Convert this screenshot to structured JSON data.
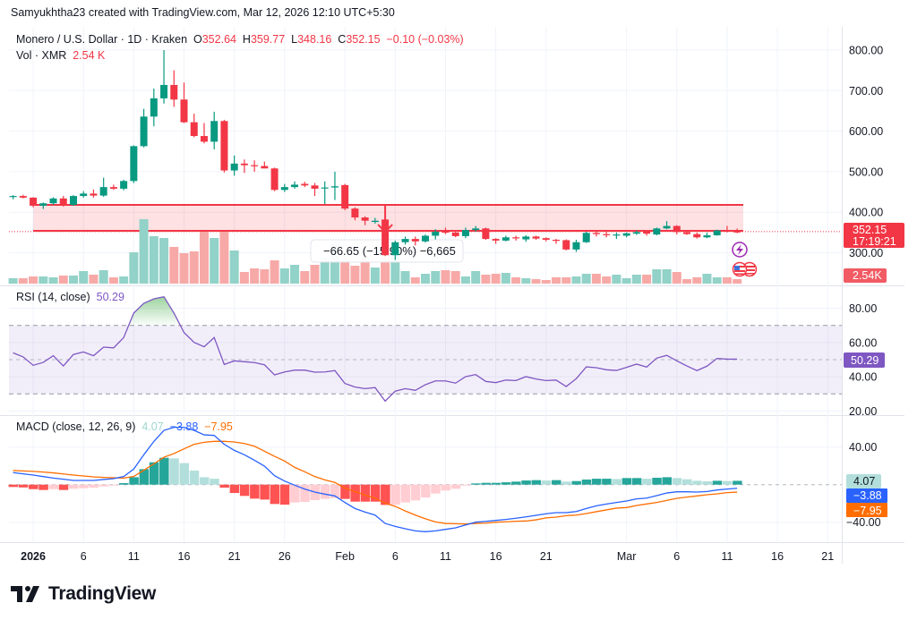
{
  "header": {
    "credit": "Samyukhtha23 created with TradingView.com, Mar 12, 2026 12:10 UTC+5:30"
  },
  "legend": {
    "symbol": "Monero / U.S. Dollar · 1D · Kraken",
    "o_label": "O",
    "o_value": "352.64",
    "h_label": "H",
    "h_value": "359.77",
    "l_label": "L",
    "l_value": "348.16",
    "c_label": "C",
    "c_value": "352.15",
    "change": "−0.10 (−0.03%)",
    "vol_label": "Vol · XMR",
    "vol_value": "2.54 K"
  },
  "rsi_legend": {
    "label": "RSI (14, close)",
    "value": "50.29"
  },
  "macd_legend": {
    "label": "MACD (close, 12, 26, 9)",
    "hist": "4.07",
    "macd": "−3.88",
    "signal": "−7.95"
  },
  "price_badge": {
    "price": "352.15",
    "countdown": "17:19:21"
  },
  "vol_badge": "2.54K",
  "rsi_badge": "50.29",
  "macd_badges": {
    "hist": "4.07",
    "macd": "−3.88",
    "signal": "−7.95"
  },
  "measure_label": "−66.65 (−15.90%) −6,665",
  "footer": {
    "brand": "TradingView"
  },
  "colors": {
    "up": "#089981",
    "down": "#f23645",
    "vol_up": "#92d2c8",
    "vol_down": "#f7a9a7",
    "rsi": "#7e57c2",
    "macd": "#2962ff",
    "signal": "#ff6d00",
    "hist_up_strong": "#26a69a",
    "hist_up_weak": "#b2dfdb",
    "hist_down_strong": "#ff5252",
    "hist_down_weak": "#ffcdd2",
    "zone": "#f23645"
  },
  "icons": [
    "lightning-icon",
    "us-flag-icon",
    "tradingview-logo-icon"
  ],
  "chart_data": [
    {
      "type": "candlestick",
      "title": "Monero / U.S. Dollar · 1D · Kraken",
      "start_date": "2025-12-30",
      "ylim": [
        260,
        820
      ],
      "y_ticks": [
        "800.00",
        "700.00",
        "600.00",
        "500.00",
        "400.00",
        "300.00"
      ],
      "x_ticks": [
        {
          "label": "2026",
          "date": "2026-01-01"
        },
        {
          "label": "6",
          "date": "2026-01-06"
        },
        {
          "label": "11",
          "date": "2026-01-11"
        },
        {
          "label": "16",
          "date": "2026-01-16"
        },
        {
          "label": "21",
          "date": "2026-01-21"
        },
        {
          "label": "26",
          "date": "2026-01-26"
        },
        {
          "label": "Feb",
          "date": "2026-02-01"
        },
        {
          "label": "6",
          "date": "2026-02-06"
        },
        {
          "label": "11",
          "date": "2026-02-11"
        },
        {
          "label": "16",
          "date": "2026-02-16"
        },
        {
          "label": "21",
          "date": "2026-02-21"
        },
        {
          "label": "Mar",
          "date": "2026-03-01"
        },
        {
          "label": "6",
          "date": "2026-03-06"
        },
        {
          "label": "11",
          "date": "2026-03-11"
        },
        {
          "label": "16",
          "date": "2026-03-16"
        },
        {
          "label": "21",
          "date": "2026-03-21"
        }
      ],
      "ohlc": [
        [
          438,
          442,
          432,
          440
        ],
        [
          440,
          443,
          434,
          436
        ],
        [
          436,
          437,
          412,
          416
        ],
        [
          416,
          424,
          408,
          422
        ],
        [
          422,
          437,
          418,
          434
        ],
        [
          434,
          440,
          414,
          418
        ],
        [
          418,
          442,
          416,
          440
        ],
        [
          440,
          452,
          436,
          446
        ],
        [
          446,
          456,
          436,
          441
        ],
        [
          441,
          485,
          438,
          462
        ],
        [
          462,
          468,
          455,
          458
        ],
        [
          458,
          480,
          454,
          477
        ],
        [
          477,
          565,
          472,
          563
        ],
        [
          563,
          655,
          560,
          636
        ],
        [
          636,
          705,
          612,
          681
        ],
        [
          681,
          800,
          668,
          714
        ],
        [
          714,
          750,
          660,
          678
        ],
        [
          678,
          720,
          620,
          622
        ],
        [
          622,
          643,
          585,
          588
        ],
        [
          588,
          620,
          570,
          574
        ],
        [
          574,
          648,
          555,
          625
        ],
        [
          625,
          628,
          498,
          503
        ],
        [
          503,
          540,
          490,
          520
        ],
        [
          520,
          530,
          497,
          516
        ],
        [
          516,
          528,
          500,
          514
        ],
        [
          514,
          525,
          508,
          508
        ],
        [
          508,
          510,
          452,
          455
        ],
        [
          455,
          470,
          450,
          462
        ],
        [
          462,
          476,
          458,
          468
        ],
        [
          470,
          475,
          462,
          466
        ],
        [
          466,
          472,
          440,
          458
        ],
        [
          460,
          476,
          420,
          461
        ],
        [
          461,
          500,
          430,
          464
        ],
        [
          467,
          470,
          405,
          409
        ],
        [
          409,
          412,
          380,
          387
        ],
        [
          387,
          390,
          368,
          379
        ],
        [
          376,
          386,
          372,
          379
        ],
        [
          382,
          418,
          292,
          294
        ],
        [
          294,
          330,
          282,
          326
        ],
        [
          326,
          340,
          320,
          334
        ],
        [
          334,
          340,
          318,
          328
        ],
        [
          328,
          345,
          325,
          342
        ],
        [
          342,
          358,
          333,
          352
        ],
        [
          352,
          362,
          346,
          350
        ],
        [
          350,
          355,
          338,
          341
        ],
        [
          341,
          362,
          336,
          356
        ],
        [
          356,
          366,
          352,
          360
        ],
        [
          360,
          362,
          332,
          334
        ],
        [
          334,
          336,
          322,
          330
        ],
        [
          330,
          342,
          328,
          338
        ],
        [
          338,
          342,
          330,
          336
        ],
        [
          333,
          343,
          327,
          340
        ],
        [
          340,
          342,
          332,
          335
        ],
        [
          336,
          338,
          328,
          332
        ],
        [
          332,
          334,
          322,
          331
        ],
        [
          331,
          333,
          306,
          308
        ],
        [
          308,
          332,
          302,
          326
        ],
        [
          326,
          352,
          324,
          349
        ],
        [
          349,
          355,
          340,
          346
        ],
        [
          346,
          356,
          338,
          344
        ],
        [
          344,
          350,
          334,
          345
        ],
        [
          342,
          350,
          338,
          348
        ],
        [
          347,
          355,
          344,
          351
        ],
        [
          354,
          356,
          342,
          347
        ],
        [
          345,
          362,
          343,
          360
        ],
        [
          360,
          378,
          358,
          366
        ],
        [
          366,
          368,
          345,
          351
        ],
        [
          351,
          354,
          344,
          346
        ],
        [
          346,
          350,
          335,
          338
        ],
        [
          338,
          350,
          336,
          343
        ],
        [
          343,
          357,
          342,
          355
        ],
        [
          355,
          366,
          350,
          353
        ],
        [
          352.64,
          359.77,
          348.16,
          352.15
        ]
      ],
      "volume_k": [
        3,
        3,
        4,
        4,
        3.5,
        4.5,
        4.5,
        7,
        5,
        7.5,
        3.5,
        4,
        17.5,
        36,
        26.5,
        25.5,
        20.5,
        17,
        18,
        29,
        25.5,
        29,
        18.5,
        6.5,
        8.5,
        8,
        13,
        8.5,
        10.5,
        7,
        10.5,
        14.5,
        23.5,
        13,
        10,
        13.5,
        9,
        20,
        21.5,
        7,
        3.5,
        5.5,
        7,
        7.5,
        7,
        4,
        7,
        5,
        5.5,
        6,
        3.5,
        3,
        2.5,
        2,
        3.5,
        3.5,
        4,
        5.5,
        5.5,
        4,
        5,
        3,
        5,
        5,
        8,
        8,
        6.5,
        2.5,
        3.5,
        5.5,
        3.5,
        3.5,
        2.54
      ],
      "last_price": 352.15,
      "zone": {
        "top": 418,
        "bottom": 354,
        "from": "2026-01-01"
      },
      "measure": {
        "date": "2026-02-05",
        "from": 418.3,
        "to": 351.65
      }
    },
    {
      "type": "line",
      "title": "RSI (14, close)",
      "ylim": [
        17,
        92
      ],
      "y_ticks": [
        "80.00",
        "60.00",
        "40.00",
        "20.00"
      ],
      "bands": {
        "upper": 70,
        "middle": 50,
        "lower": 30
      },
      "values": [
        54.0,
        51.6,
        46.7,
        48.4,
        52.3,
        46.3,
        53.0,
        54.5,
        52.3,
        57.3,
        56.9,
        62.9,
        77.2,
        82.9,
        85.5,
        86.7,
        77.2,
        65.8,
        60.1,
        57.5,
        62.9,
        47.2,
        49.3,
        48.8,
        48.3,
        47.0,
        41.1,
        42.8,
        43.9,
        43.9,
        42.7,
        42.8,
        43.6,
        36.1,
        34.0,
        33.1,
        33.7,
        25.8,
        31.6,
        33.1,
        32.1,
        35.4,
        37.6,
        37.6,
        36.3,
        40.1,
        41.3,
        37.3,
        36.6,
        38.1,
        37.8,
        40.1,
        38.7,
        37.8,
        38.1,
        34.3,
        38.9,
        45.8,
        45.3,
        44.1,
        43.7,
        45.5,
        47.4,
        45.7,
        50.9,
        52.5,
        49.3,
        46.3,
        43.6,
        46.2,
        50.7,
        50.3,
        50.29
      ]
    },
    {
      "type": "bar+line",
      "title": "MACD (close, 12, 26, 9)",
      "y_ticks": [
        {
          "label": "40.00",
          "value": 40
        },
        {
          "label": "−40.00",
          "value": -40
        }
      ],
      "macd": [
        12.8,
        11.5,
        10.2,
        8.6,
        7.0,
        5.8,
        4.5,
        4.5,
        4.5,
        5.5,
        6.4,
        8.6,
        16.6,
        31.8,
        46.0,
        57.8,
        61.0,
        61.0,
        57.8,
        53.0,
        52.4,
        42.9,
        36.5,
        31.8,
        26.0,
        19.7,
        9.5,
        3.8,
        -0.6,
        -4.7,
        -7.9,
        -10.1,
        -12.0,
        -19.0,
        -25.4,
        -29.2,
        -32.4,
        -41.3,
        -44.4,
        -47.0,
        -49.2,
        -50.1,
        -49.2,
        -47.6,
        -46.0,
        -42.9,
        -40.0,
        -39.1,
        -38.1,
        -37.1,
        -35.8,
        -34.3,
        -32.7,
        -31.0,
        -29.8,
        -29.8,
        -28.6,
        -25.4,
        -22.5,
        -20.6,
        -19.0,
        -17.4,
        -15.2,
        -14.3,
        -11.7,
        -8.9,
        -7.6,
        -7.6,
        -7.9,
        -7.3,
        -5.7,
        -4.7,
        -3.88
      ],
      "signal": [
        15.0,
        14.6,
        14.1,
        13.4,
        12.5,
        11.4,
        10.2,
        9.2,
        8.3,
        7.7,
        7.3,
        7.0,
        8.7,
        15.3,
        22.2,
        29.2,
        33.1,
        38.1,
        42.9,
        45.1,
        46.1,
        46.1,
        45.4,
        43.8,
        40.9,
        35.6,
        30.1,
        25.1,
        18.4,
        13.7,
        8.6,
        5.1,
        2.3,
        -3.8,
        -7.3,
        -11.1,
        -14.3,
        -19.7,
        -23.1,
        -28.0,
        -32.4,
        -36.4,
        -39.7,
        -41.3,
        -41.6,
        -41.9,
        -41.3,
        -41.0,
        -40.0,
        -39.6,
        -39.0,
        -38.7,
        -37.5,
        -35.4,
        -34.6,
        -33.0,
        -32.4,
        -30.8,
        -28.8,
        -26.9,
        -25.0,
        -24.4,
        -22.2,
        -20.6,
        -19.0,
        -16.8,
        -14.6,
        -13.3,
        -12.0,
        -10.8,
        -9.8,
        -8.5,
        -7.95
      ],
      "histogram": [
        -2.5,
        -3,
        -4.8,
        -5.7,
        -4.8,
        -5.7,
        -4.4,
        -3.8,
        -3.2,
        -1.9,
        -1,
        1.6,
        7.9,
        16.5,
        23.8,
        28.6,
        27.9,
        22.9,
        14.9,
        7.9,
        6.3,
        -3.2,
        -8.9,
        -12,
        -14.9,
        -15.9,
        -20.6,
        -21.3,
        -19,
        -18.4,
        -16.5,
        -15.2,
        -14.3,
        -15.2,
        -18.1,
        -18.1,
        -18.1,
        -21.6,
        -21.3,
        -19,
        -16.8,
        -13.7,
        -9.5,
        -6.3,
        -4.4,
        -1,
        1.3,
        1.9,
        1.9,
        2.5,
        3.2,
        4.4,
        4.8,
        4.4,
        4.8,
        3.2,
        3.8,
        5.4,
        6.3,
        6.3,
        6,
        7,
        7,
        6.3,
        7.3,
        7.9,
        7,
        5.7,
        4.1,
        3.5,
        4.1,
        3.8,
        4.07
      ]
    }
  ]
}
